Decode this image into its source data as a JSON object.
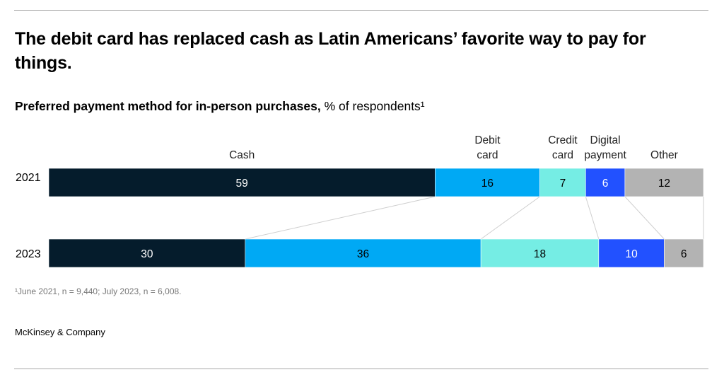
{
  "title": "The debit card has replaced cash as Latin Americans’ favorite way to pay for things.",
  "subtitle_bold": "Preferred payment method for in-person purchases,",
  "subtitle_rest": " % of respondents¹",
  "footnote": "¹June 2021, n = 9,440; July 2023, n = 6,008.",
  "brand": "McKinsey & Company",
  "chart_data": {
    "type": "bar",
    "orientation": "horizontal-stacked-100",
    "categories": [
      "2021",
      "2023"
    ],
    "series": [
      {
        "name": "Cash",
        "values": [
          59,
          30
        ],
        "color": "#051c2c",
        "text_color": "#ffffff"
      },
      {
        "name": "Debit card",
        "values": [
          16,
          36
        ],
        "color": "#00a9f4",
        "text_color": "#000000"
      },
      {
        "name": "Credit card",
        "values": [
          7,
          18
        ],
        "color": "#75ede4",
        "text_color": "#000000"
      },
      {
        "name": "Digital payment",
        "values": [
          6,
          10
        ],
        "color": "#2251ff",
        "text_color": "#ffffff"
      },
      {
        "name": "Other",
        "values": [
          12,
          6
        ],
        "color": "#b3b3b3",
        "text_color": "#000000"
      }
    ],
    "xlim": [
      0,
      100
    ],
    "legend": "labels above first bar",
    "connectors": true
  }
}
